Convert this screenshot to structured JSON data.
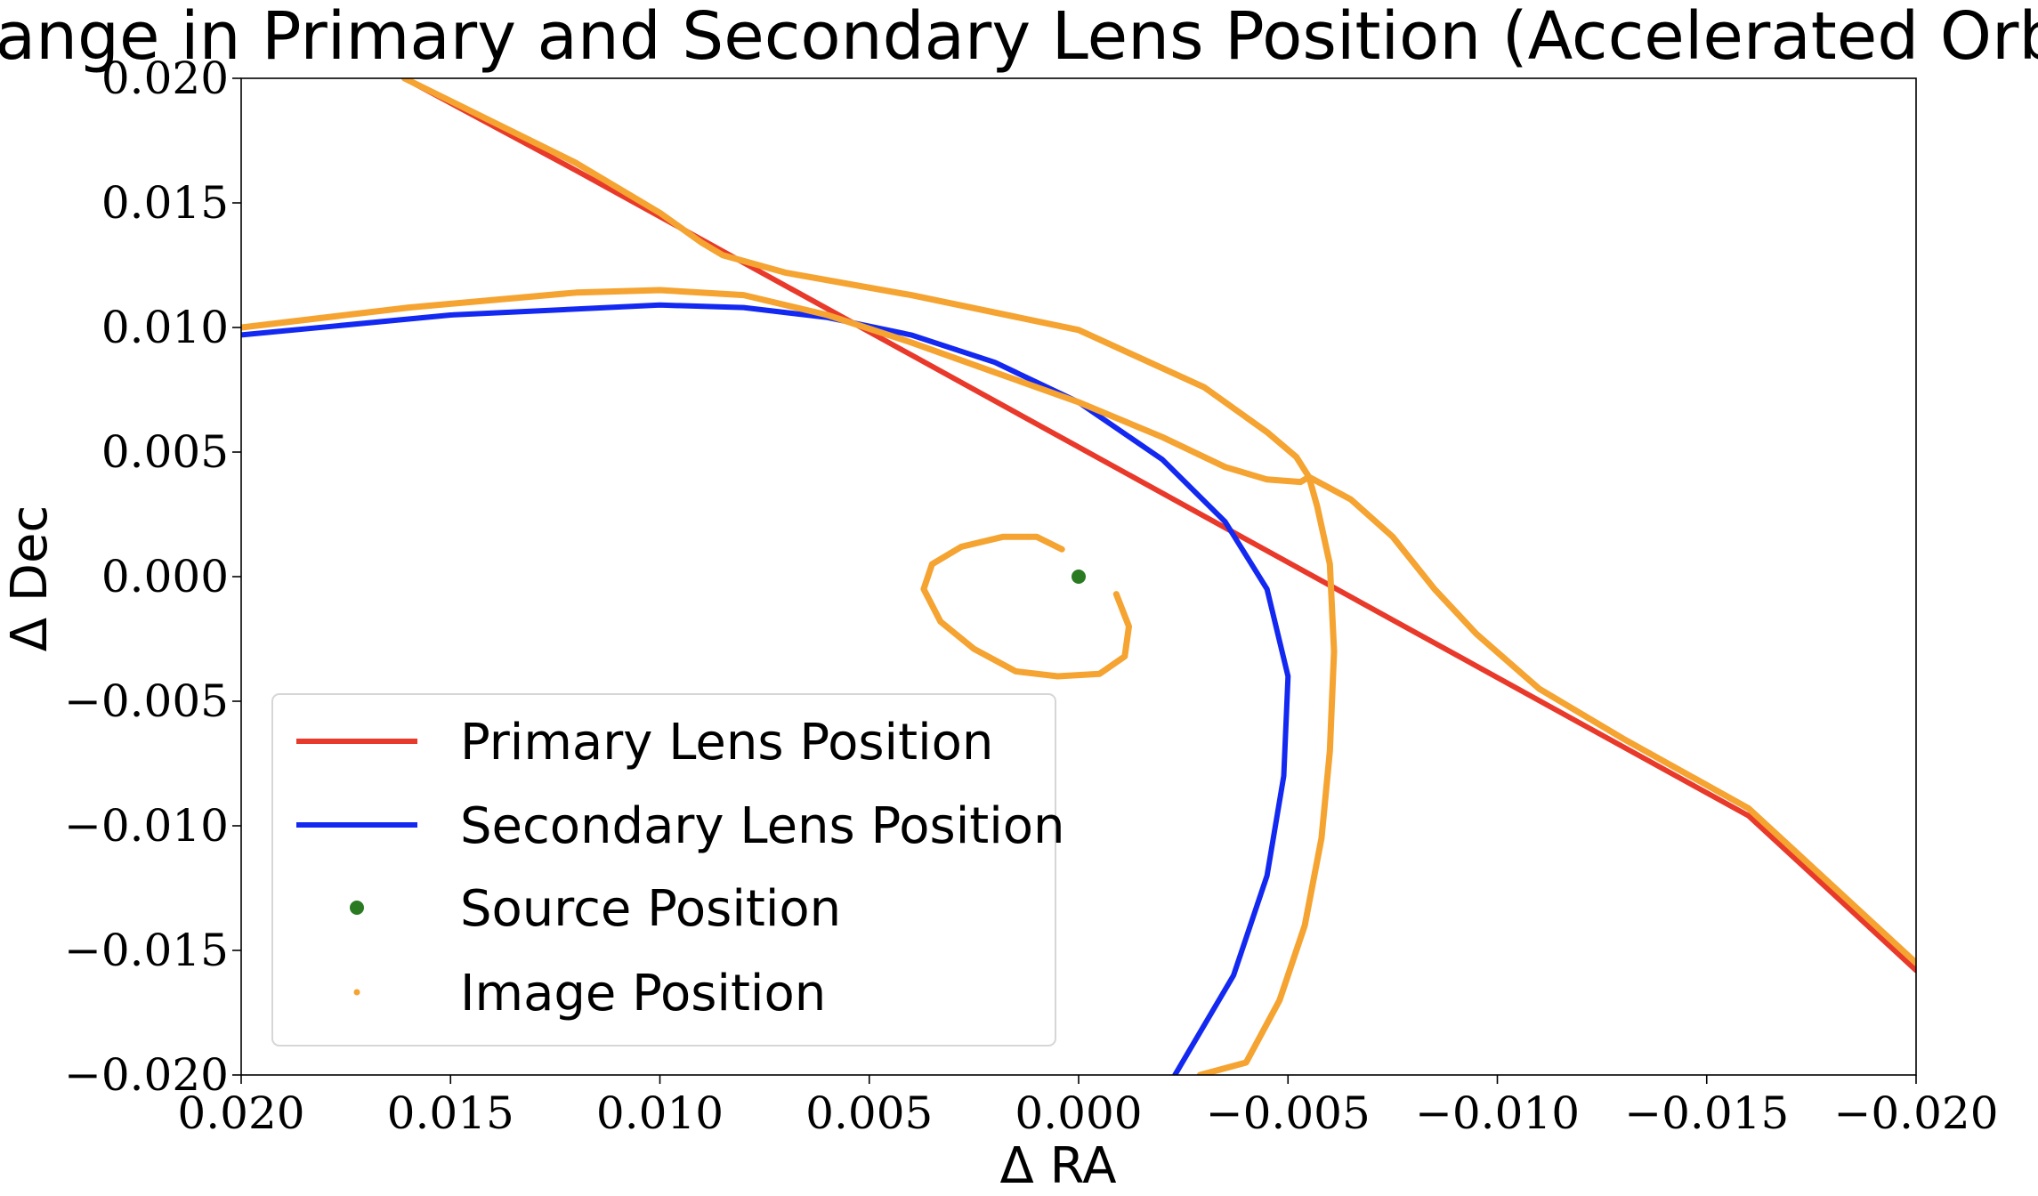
{
  "chart_data": {
    "type": "line",
    "title": "Change in Primary and Secondary Lens Position (Accelerated Orbit)",
    "xlabel": "Δ RA",
    "ylabel": "Δ Dec",
    "xlim": [
      0.02,
      -0.02
    ],
    "ylim": [
      -0.02,
      0.02
    ],
    "x_inverted": true,
    "xticks": [
      0.02,
      0.015,
      0.01,
      0.005,
      0.0,
      -0.005,
      -0.01,
      -0.015,
      -0.02
    ],
    "xtick_labels": [
      "0.020",
      "0.015",
      "0.010",
      "0.005",
      "0.000",
      "−0.005",
      "−0.010",
      "−0.015",
      "−0.020"
    ],
    "yticks": [
      0.02,
      0.015,
      0.01,
      0.005,
      0.0,
      -0.005,
      -0.01,
      -0.015,
      -0.02
    ],
    "ytick_labels": [
      "0.020",
      "0.015",
      "0.010",
      "0.005",
      "0.000",
      "−0.005",
      "−0.010",
      "−0.015",
      "−0.020"
    ],
    "grid": false,
    "legend_position": "lower-left",
    "series": [
      {
        "name": "Primary Lens Position",
        "kind": "line",
        "color": "#e8392a",
        "x": [
          0.0161,
          0.012,
          0.008,
          0.004,
          0.0,
          -0.004,
          -0.008,
          -0.012,
          -0.016,
          -0.02
        ],
        "y": [
          0.02,
          0.0163,
          0.0126,
          0.0089,
          0.0052,
          0.0015,
          -0.0022,
          -0.0059,
          -0.0096,
          -0.0158
        ]
      },
      {
        "name": "Secondary Lens Position",
        "kind": "line",
        "color": "#1328f0",
        "x": [
          0.02,
          0.015,
          0.01,
          0.008,
          0.006,
          0.004,
          0.002,
          0.0,
          -0.002,
          -0.0035,
          -0.0045,
          -0.005,
          -0.0049,
          -0.0045,
          -0.0037,
          -0.0023
        ],
        "y": [
          0.0097,
          0.0105,
          0.0109,
          0.0108,
          0.0104,
          0.0097,
          0.0086,
          0.007,
          0.0047,
          0.0022,
          -0.0005,
          -0.004,
          -0.008,
          -0.012,
          -0.016,
          -0.02
        ]
      },
      {
        "name": "Source Position",
        "kind": "point",
        "color": "#2a7a22",
        "x": [
          0.0
        ],
        "y": [
          0.0
        ]
      },
      {
        "name": "Image Position",
        "kind": "dotted-track",
        "color": "#f5a331",
        "tracks": [
          {
            "x": [
              0.02,
              0.016,
              0.012,
              0.01,
              0.008,
              0.006,
              0.004,
              0.002,
              0.0,
              -0.002,
              -0.0035,
              -0.0045,
              -0.0053,
              -0.0055
            ],
            "y": [
              0.01,
              0.0108,
              0.0114,
              0.0115,
              0.0113,
              0.0105,
              0.0094,
              0.0082,
              0.007,
              0.0056,
              0.0044,
              0.0039,
              0.0038,
              0.004
            ]
          },
          {
            "x": [
              0.0161,
              0.012,
              0.01,
              0.009,
              0.0085,
              0.007,
              0.004,
              0.0,
              -0.003,
              -0.0045,
              -0.0052,
              -0.0055,
              -0.0057,
              -0.006,
              -0.0061,
              -0.006,
              -0.0058,
              -0.0054,
              -0.0048,
              -0.004,
              -0.0029
            ],
            "y": [
              0.02,
              0.0166,
              0.0146,
              0.0134,
              0.0129,
              0.0122,
              0.0113,
              0.0099,
              0.0076,
              0.0058,
              0.0048,
              0.004,
              0.0028,
              0.0005,
              -0.003,
              -0.007,
              -0.0105,
              -0.014,
              -0.017,
              -0.0195,
              -0.02
            ]
          },
          {
            "x": [
              -0.0055,
              -0.0065,
              -0.0075,
              -0.0085,
              -0.0095,
              -0.011,
              -0.013,
              -0.016,
              -0.02
            ],
            "y": [
              0.004,
              0.0031,
              0.0016,
              -0.0005,
              -0.0023,
              -0.0045,
              -0.0065,
              -0.0093,
              -0.0155
            ]
          },
          {
            "x": [
              -0.0009,
              -0.0012,
              -0.0011,
              -0.0005,
              0.0005,
              0.0015,
              0.0025,
              0.0033,
              0.0037,
              0.0035,
              0.0028,
              0.0018,
              0.001,
              0.0004
            ],
            "y": [
              -0.0007,
              -0.002,
              -0.0032,
              -0.0039,
              -0.004,
              -0.0038,
              -0.0029,
              -0.0018,
              -0.0005,
              0.0005,
              0.0012,
              0.0016,
              0.0016,
              0.0011
            ]
          }
        ]
      }
    ]
  }
}
